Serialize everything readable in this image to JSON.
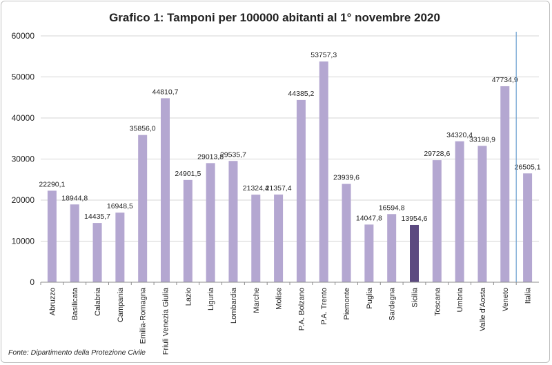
{
  "chart_data": {
    "type": "bar",
    "title": "Grafico 1: Tamponi per 100000 abitanti al 1° novembre 2020",
    "categories": [
      "Abruzzo",
      "Basilicata",
      "Calabria",
      "Campania",
      "Emilia-Romagna",
      "Friuli Venezia Giulia",
      "Lazio",
      "Liguria",
      "Lombardia",
      "Marche",
      "Molise",
      "P.A. Bolzano",
      "P.A. Trento",
      "Piemonte",
      "Puglia",
      "Sardegna",
      "Sicilia",
      "Toscana",
      "Umbria",
      "Valle d'Aosta",
      "Veneto",
      "Italia"
    ],
    "values": [
      22290.1,
      18944.8,
      14435.7,
      16948.5,
      35856.0,
      44810.7,
      24901.5,
      29013.8,
      29535.7,
      21324.4,
      21357.4,
      44385.2,
      53757.3,
      23939.6,
      14047.8,
      16594.8,
      13954.6,
      29728.6,
      34320.4,
      33198.9,
      47734.9,
      26505.1
    ],
    "data_labels": [
      "22290,1",
      "18944,8",
      "14435,7",
      "16948,5",
      "35856,0",
      "44810,7",
      "24901,5",
      "29013,8",
      "29535,7",
      "21324,4",
      "21357,4",
      "44385,2",
      "53757,3",
      "23939,6",
      "14047,8",
      "16594,8",
      "13954,6",
      "29728,6",
      "34320,4",
      "33198,9",
      "47734,9",
      "26505,1"
    ],
    "y_ticks": [
      "0",
      "10000",
      "20000",
      "30000",
      "40000",
      "50000",
      "60000"
    ],
    "ylim": [
      0,
      60000
    ],
    "highlight_category": "Sicilia",
    "separator_after": "Veneto",
    "grid": true,
    "colors": {
      "bar": "#b4a7d1",
      "highlight": "#5c4a80",
      "grid": "#d4d4d4",
      "separator": "#6a9fd0"
    }
  },
  "source_note": "Fonte: Dipartimento della Protezione Civile"
}
